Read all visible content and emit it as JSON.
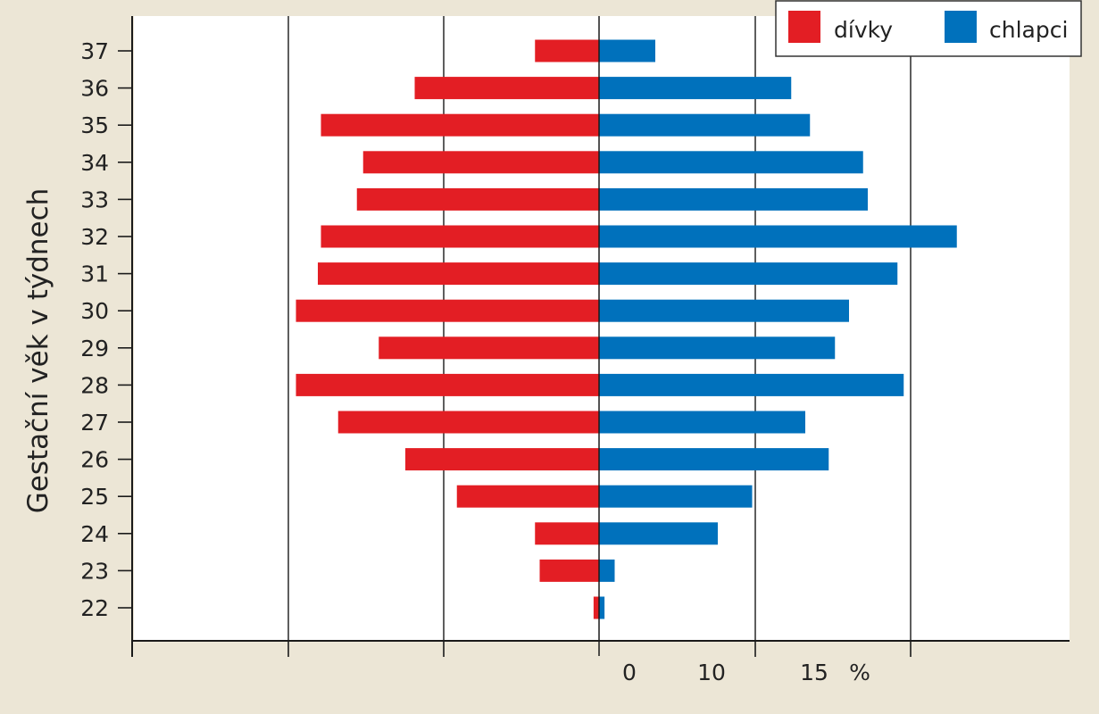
{
  "colors": {
    "background": "#ece6d6",
    "plot_background": "#ffffff",
    "girls": "#e31e24",
    "boys": "#0071bc",
    "axis": "#1a1a1a"
  },
  "chart_data": {
    "type": "bar",
    "orientation": "horizontal",
    "layout": "population-pyramid",
    "ylabel": "Gestační věk v týdnech",
    "categories": [
      "22",
      "23",
      "24",
      "25",
      "26",
      "27",
      "28",
      "29",
      "30",
      "31",
      "32",
      "33",
      "34",
      "35",
      "36",
      "37"
    ],
    "series": [
      {
        "name": "dívky",
        "side": "left",
        "values": [
          0.35,
          3.8,
          4.1,
          9.1,
          12.4,
          16.7,
          19.4,
          14.1,
          19.4,
          18.0,
          17.8,
          15.5,
          15.1,
          17.8,
          11.8,
          4.1
        ]
      },
      {
        "name": "chlapci",
        "side": "right",
        "values": [
          0.35,
          1.0,
          7.6,
          9.8,
          14.7,
          13.2,
          19.5,
          15.1,
          16.0,
          19.1,
          22.9,
          17.2,
          16.9,
          13.5,
          12.3,
          3.6
        ]
      }
    ],
    "x_tick_labels": [
      "0",
      "10",
      "15",
      "%"
    ],
    "grid_lines_each_side": 2,
    "legend": {
      "position": "top-right",
      "entries": [
        "dívky",
        "chlapci"
      ]
    }
  }
}
